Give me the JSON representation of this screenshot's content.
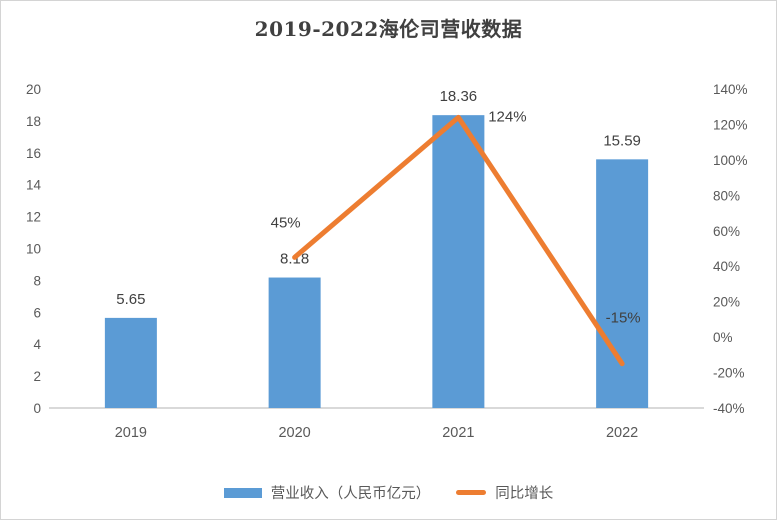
{
  "chart_data": {
    "type": "bar+line",
    "title": "2019-2022海伦司营收数据",
    "categories": [
      "2019",
      "2020",
      "2021",
      "2022"
    ],
    "series": [
      {
        "name": "营业收入（人民币亿元）",
        "type": "bar",
        "axis": "left",
        "color": "#5B9BD5",
        "values": [
          5.65,
          8.18,
          18.36,
          15.59
        ],
        "data_labels": [
          "5.65",
          "8.18",
          "18.36",
          "15.59"
        ]
      },
      {
        "name": "同比增长",
        "type": "line",
        "axis": "right",
        "color": "#ED7D31",
        "values": [
          null,
          45,
          124,
          -15
        ],
        "data_labels": [
          null,
          "45%",
          "124%",
          "-15%"
        ]
      }
    ],
    "left_axis": {
      "min": 0,
      "max": 20,
      "step": 2,
      "ticks": [
        "0",
        "2",
        "4",
        "6",
        "8",
        "10",
        "12",
        "14",
        "16",
        "18",
        "20"
      ]
    },
    "right_axis": {
      "min": -40,
      "max": 140,
      "step": 20,
      "ticks": [
        "-40%",
        "-20%",
        "0%",
        "20%",
        "40%",
        "60%",
        "80%",
        "100%",
        "120%",
        "140%"
      ]
    },
    "grid": false,
    "legend_position": "bottom",
    "colors": {
      "bar": "#5B9BD5",
      "line": "#ED7D31",
      "axis_line": "#D9D9D9",
      "tick_text": "#595959",
      "category_text": "#595959",
      "data_label_text": "#404040",
      "title_text": "#404040"
    }
  }
}
